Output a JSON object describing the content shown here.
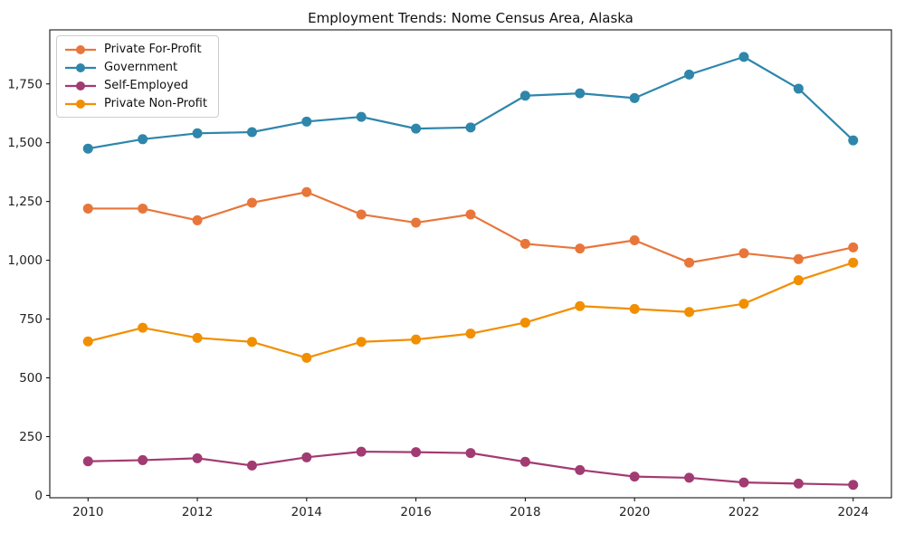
{
  "chart_data": {
    "type": "line",
    "title": "Employment Trends: Nome Census Area, Alaska",
    "xlabel": "",
    "ylabel": "",
    "grid": false,
    "legend_position": "upper left",
    "x": [
      2010,
      2011,
      2012,
      2013,
      2014,
      2015,
      2016,
      2017,
      2018,
      2019,
      2020,
      2021,
      2022,
      2023,
      2024
    ],
    "series": [
      {
        "name": "Private For-Profit",
        "color": "#e8763b",
        "values": [
          1220,
          1220,
          1170,
          1245,
          1290,
          1195,
          1160,
          1195,
          1070,
          1050,
          1085,
          990,
          1030,
          1005,
          1055
        ]
      },
      {
        "name": "Government",
        "color": "#2e86ab",
        "values": [
          1475,
          1515,
          1540,
          1545,
          1590,
          1610,
          1560,
          1565,
          1700,
          1710,
          1690,
          1790,
          1865,
          1730,
          1510
        ]
      },
      {
        "name": "Self-Employed",
        "color": "#a23b72",
        "values": [
          145,
          150,
          158,
          127,
          162,
          186,
          184,
          180,
          143,
          108,
          80,
          75,
          55,
          50,
          45
        ]
      },
      {
        "name": "Private Non-Profit",
        "color": "#f18f01",
        "values": [
          655,
          713,
          670,
          653,
          585,
          653,
          663,
          688,
          735,
          805,
          793,
          780,
          815,
          915,
          990
        ]
      }
    ],
    "xlim": [
      2009.3,
      2024.7
    ],
    "ylim": [
      -10,
      1980
    ],
    "x_ticks": [
      2010,
      2012,
      2014,
      2016,
      2018,
      2020,
      2022,
      2024
    ],
    "y_ticks": [
      0,
      250,
      500,
      750,
      1000,
      1250,
      1500,
      1750
    ],
    "y_tick_labels": [
      "0",
      "250",
      "500",
      "750",
      "1,000",
      "1,250",
      "1,500",
      "1,750"
    ]
  }
}
